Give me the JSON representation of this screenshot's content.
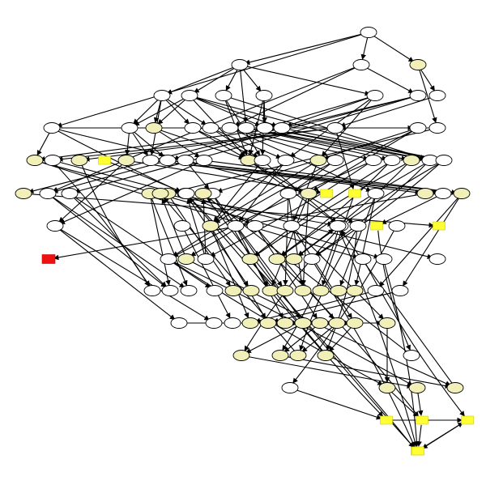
{
  "colors": {
    "background": "#ffffff",
    "edge": "#000000",
    "node_default_fill": "#ffffff",
    "node_highlight_fill": "#f0f0b8",
    "node_box_fill": "#ffff33",
    "node_root_fill": "#ee1111"
  },
  "nodes": [
    {
      "id": "n1",
      "shape": "ellipse",
      "style": "default"
    },
    {
      "id": "n2",
      "shape": "ellipse",
      "style": "default"
    },
    {
      "id": "n3",
      "shape": "ellipse",
      "style": "default"
    },
    {
      "id": "n4",
      "shape": "ellipse",
      "style": "highlight"
    },
    {
      "id": "n5",
      "shape": "ellipse",
      "style": "default"
    },
    {
      "id": "n6",
      "shape": "ellipse",
      "style": "default"
    },
    {
      "id": "n7",
      "shape": "ellipse",
      "style": "default"
    },
    {
      "id": "n8",
      "shape": "ellipse",
      "style": "default"
    },
    {
      "id": "n9",
      "shape": "ellipse",
      "style": "default"
    },
    {
      "id": "n10",
      "shape": "ellipse",
      "style": "default"
    },
    {
      "id": "n11",
      "shape": "ellipse",
      "style": "default"
    },
    {
      "id": "n12",
      "shape": "ellipse",
      "style": "default"
    },
    {
      "id": "n13",
      "shape": "ellipse",
      "style": "default"
    },
    {
      "id": "n14",
      "shape": "ellipse",
      "style": "highlight"
    },
    {
      "id": "n15",
      "shape": "ellipse",
      "style": "default"
    },
    {
      "id": "n16",
      "shape": "ellipse",
      "style": "default"
    },
    {
      "id": "n17",
      "shape": "ellipse",
      "style": "default"
    },
    {
      "id": "n18",
      "shape": "ellipse",
      "style": "default"
    },
    {
      "id": "n19",
      "shape": "ellipse",
      "style": "default"
    },
    {
      "id": "n20",
      "shape": "ellipse",
      "style": "default"
    },
    {
      "id": "n21",
      "shape": "ellipse",
      "style": "default"
    },
    {
      "id": "n22",
      "shape": "ellipse",
      "style": "default"
    },
    {
      "id": "n23",
      "shape": "box",
      "style": "box"
    },
    {
      "id": "n24",
      "shape": "ellipse",
      "style": "default"
    },
    {
      "id": "n25",
      "shape": "ellipse",
      "style": "highlight"
    },
    {
      "id": "n26",
      "shape": "ellipse",
      "style": "default"
    },
    {
      "id": "n27",
      "shape": "ellipse",
      "style": "default"
    },
    {
      "id": "n28",
      "shape": "ellipse",
      "style": "default"
    },
    {
      "id": "n29",
      "shape": "ellipse",
      "style": "default"
    },
    {
      "id": "n30",
      "shape": "ellipse",
      "style": "highlight"
    },
    {
      "id": "n31",
      "shape": "ellipse",
      "style": "default"
    },
    {
      "id": "n32",
      "shape": "ellipse",
      "style": "default"
    },
    {
      "id": "n33",
      "shape": "ellipse",
      "style": "highlight"
    },
    {
      "id": "n34",
      "shape": "ellipse",
      "style": "default"
    },
    {
      "id": "n35",
      "shape": "ellipse",
      "style": "default"
    },
    {
      "id": "n36",
      "shape": "ellipse",
      "style": "default"
    },
    {
      "id": "n37",
      "shape": "ellipse",
      "style": "highlight"
    },
    {
      "id": "n38",
      "shape": "ellipse",
      "style": "default"
    },
    {
      "id": "n39",
      "shape": "ellipse",
      "style": "default"
    },
    {
      "id": "n40",
      "shape": "ellipse",
      "style": "highlight"
    },
    {
      "id": "n41",
      "shape": "ellipse",
      "style": "default"
    },
    {
      "id": "n42",
      "shape": "ellipse",
      "style": "highlight"
    },
    {
      "id": "n43",
      "shape": "ellipse",
      "style": "highlight"
    },
    {
      "id": "n44",
      "shape": "ellipse",
      "style": "default"
    },
    {
      "id": "n45",
      "shape": "ellipse",
      "style": "default"
    },
    {
      "id": "n46",
      "shape": "ellipse",
      "style": "highlight"
    },
    {
      "id": "n47",
      "shape": "ellipse",
      "style": "highlight"
    },
    {
      "id": "n48",
      "shape": "ellipse",
      "style": "default"
    },
    {
      "id": "n49",
      "shape": "ellipse",
      "style": "default"
    },
    {
      "id": "n50",
      "shape": "ellipse",
      "style": "default"
    },
    {
      "id": "n51",
      "shape": "ellipse",
      "style": "highlight"
    },
    {
      "id": "n52",
      "shape": "box",
      "style": "box"
    },
    {
      "id": "n53",
      "shape": "box",
      "style": "box"
    },
    {
      "id": "n54",
      "shape": "ellipse",
      "style": "default"
    },
    {
      "id": "n55",
      "shape": "ellipse",
      "style": "highlight"
    },
    {
      "id": "n56",
      "shape": "ellipse",
      "style": "default"
    },
    {
      "id": "n57",
      "shape": "ellipse",
      "style": "highlight"
    },
    {
      "id": "n58",
      "shape": "ellipse",
      "style": "default"
    },
    {
      "id": "n59",
      "shape": "ellipse",
      "style": "default"
    },
    {
      "id": "n60",
      "shape": "ellipse",
      "style": "highlight"
    },
    {
      "id": "n61",
      "shape": "ellipse",
      "style": "default"
    },
    {
      "id": "n62",
      "shape": "ellipse",
      "style": "default"
    },
    {
      "id": "n63",
      "shape": "ellipse",
      "style": "default"
    },
    {
      "id": "n64",
      "shape": "ellipse",
      "style": "default"
    },
    {
      "id": "n65",
      "shape": "ellipse",
      "style": "default"
    },
    {
      "id": "n66",
      "shape": "box",
      "style": "box"
    },
    {
      "id": "n67",
      "shape": "box",
      "style": "root"
    },
    {
      "id": "n68",
      "shape": "ellipse",
      "style": "default"
    },
    {
      "id": "n69",
      "shape": "ellipse",
      "style": "default"
    },
    {
      "id": "n70",
      "shape": "ellipse",
      "style": "highlight"
    },
    {
      "id": "n71",
      "shape": "ellipse",
      "style": "default"
    },
    {
      "id": "n72",
      "shape": "ellipse",
      "style": "highlight"
    },
    {
      "id": "n73",
      "shape": "ellipse",
      "style": "highlight"
    },
    {
      "id": "n74",
      "shape": "ellipse",
      "style": "highlight"
    },
    {
      "id": "n75",
      "shape": "ellipse",
      "style": "default"
    },
    {
      "id": "n76",
      "shape": "ellipse",
      "style": "default"
    },
    {
      "id": "n77",
      "shape": "ellipse",
      "style": "default"
    },
    {
      "id": "n78",
      "shape": "ellipse",
      "style": "default"
    },
    {
      "id": "n79",
      "shape": "ellipse",
      "style": "default"
    },
    {
      "id": "n80",
      "shape": "box",
      "style": "box"
    },
    {
      "id": "n81",
      "shape": "ellipse",
      "style": "default"
    },
    {
      "id": "n82",
      "shape": "ellipse",
      "style": "default"
    },
    {
      "id": "n83",
      "shape": "ellipse",
      "style": "default"
    },
    {
      "id": "n84",
      "shape": "ellipse",
      "style": "highlight"
    },
    {
      "id": "n85",
      "shape": "ellipse",
      "style": "highlight"
    },
    {
      "id": "n86",
      "shape": "ellipse",
      "style": "highlight"
    },
    {
      "id": "n87",
      "shape": "ellipse",
      "style": "highlight"
    },
    {
      "id": "n88",
      "shape": "ellipse",
      "style": "highlight"
    },
    {
      "id": "n89",
      "shape": "ellipse",
      "style": "highlight"
    },
    {
      "id": "n90",
      "shape": "ellipse",
      "style": "highlight"
    },
    {
      "id": "n91",
      "shape": "ellipse",
      "style": "highlight"
    },
    {
      "id": "n92",
      "shape": "ellipse",
      "style": "default"
    },
    {
      "id": "n93",
      "shape": "ellipse",
      "style": "default"
    },
    {
      "id": "n94",
      "shape": "ellipse",
      "style": "default"
    },
    {
      "id": "n95",
      "shape": "ellipse",
      "style": "default"
    },
    {
      "id": "n96",
      "shape": "ellipse",
      "style": "default"
    },
    {
      "id": "n97",
      "shape": "ellipse",
      "style": "highlight"
    },
    {
      "id": "n98",
      "shape": "ellipse",
      "style": "highlight"
    },
    {
      "id": "n99",
      "shape": "ellipse",
      "style": "highlight"
    },
    {
      "id": "n100",
      "shape": "ellipse",
      "style": "highlight"
    },
    {
      "id": "n101",
      "shape": "ellipse",
      "style": "highlight"
    },
    {
      "id": "n102",
      "shape": "ellipse",
      "style": "highlight"
    },
    {
      "id": "n103",
      "shape": "ellipse",
      "style": "highlight"
    },
    {
      "id": "n104",
      "shape": "ellipse",
      "style": "highlight"
    },
    {
      "id": "n105",
      "shape": "ellipse",
      "style": "highlight"
    },
    {
      "id": "n106",
      "shape": "ellipse",
      "style": "highlight"
    },
    {
      "id": "n107",
      "shape": "ellipse",
      "style": "highlight"
    },
    {
      "id": "n108",
      "shape": "ellipse",
      "style": "highlight"
    },
    {
      "id": "n109",
      "shape": "ellipse",
      "style": "default"
    },
    {
      "id": "n110",
      "shape": "ellipse",
      "style": "default"
    },
    {
      "id": "n111",
      "shape": "ellipse",
      "style": "highlight"
    },
    {
      "id": "n112",
      "shape": "ellipse",
      "style": "highlight"
    },
    {
      "id": "n113",
      "shape": "ellipse",
      "style": "highlight"
    },
    {
      "id": "n114",
      "shape": "ellipse",
      "style": "highlight"
    },
    {
      "id": "n115",
      "shape": "ellipse",
      "style": "default"
    },
    {
      "id": "n116",
      "shape": "ellipse",
      "style": "highlight"
    },
    {
      "id": "n117",
      "shape": "box",
      "style": "box"
    },
    {
      "id": "n118",
      "shape": "box",
      "style": "box"
    },
    {
      "id": "n119",
      "shape": "ellipse",
      "style": "default"
    },
    {
      "id": "n120",
      "shape": "box",
      "style": "box"
    },
    {
      "id": "n121",
      "shape": "box",
      "style": "box"
    },
    {
      "id": "n122",
      "shape": "box",
      "style": "box"
    }
  ],
  "edges": [
    [
      "n1",
      "n2"
    ],
    [
      "n1",
      "n3"
    ],
    [
      "n1",
      "n4"
    ],
    [
      "n1",
      "n17"
    ],
    [
      "n2",
      "n5"
    ],
    [
      "n2",
      "n6"
    ],
    [
      "n2",
      "n7"
    ],
    [
      "n2",
      "n8"
    ],
    [
      "n2",
      "n9"
    ],
    [
      "n2",
      "n19"
    ],
    [
      "n3",
      "n10"
    ],
    [
      "n3",
      "n18"
    ],
    [
      "n3",
      "n44"
    ],
    [
      "n4",
      "n11"
    ],
    [
      "n4",
      "n12"
    ],
    [
      "n5",
      "n13"
    ],
    [
      "n5",
      "n14"
    ],
    [
      "n5",
      "n15"
    ],
    [
      "n5",
      "n16"
    ],
    [
      "n5",
      "n26"
    ],
    [
      "n6",
      "n13"
    ],
    [
      "n6",
      "n14"
    ],
    [
      "n6",
      "n20"
    ],
    [
      "n6",
      "n21"
    ],
    [
      "n6",
      "n30"
    ],
    [
      "n6",
      "n38"
    ],
    [
      "n7",
      "n30"
    ],
    [
      "n7",
      "n31"
    ],
    [
      "n7",
      "n38"
    ],
    [
      "n8",
      "n30"
    ],
    [
      "n8",
      "n31"
    ],
    [
      "n8",
      "n20"
    ],
    [
      "n9",
      "n20"
    ],
    [
      "n9",
      "n21"
    ],
    [
      "n9",
      "n32"
    ],
    [
      "n9",
      "n33"
    ],
    [
      "n10",
      "n44"
    ],
    [
      "n10",
      "n45"
    ],
    [
      "n10",
      "n43"
    ],
    [
      "n11",
      "n22"
    ],
    [
      "n12",
      "n22"
    ],
    [
      "n12",
      "n47"
    ],
    [
      "n13",
      "n25"
    ],
    [
      "n13",
      "n26"
    ],
    [
      "n13",
      "n27"
    ],
    [
      "n14",
      "n29"
    ],
    [
      "n14",
      "n30"
    ],
    [
      "n15",
      "n30"
    ],
    [
      "n15",
      "n31"
    ],
    [
      "n16",
      "n31"
    ],
    [
      "n16",
      "n32"
    ],
    [
      "n17",
      "n24"
    ],
    [
      "n17",
      "n28"
    ],
    [
      "n17",
      "n40"
    ],
    [
      "n17",
      "n62"
    ],
    [
      "n18",
      "n34"
    ],
    [
      "n18",
      "n35"
    ],
    [
      "n18",
      "n54"
    ],
    [
      "n19",
      "n36"
    ],
    [
      "n19",
      "n37"
    ],
    [
      "n19",
      "n38"
    ],
    [
      "n20",
      "n38"
    ],
    [
      "n20",
      "n39"
    ],
    [
      "n21",
      "n39"
    ],
    [
      "n21",
      "n40"
    ],
    [
      "n22",
      "n41"
    ],
    [
      "n22",
      "n42"
    ],
    [
      "n22",
      "n53"
    ],
    [
      "n23",
      "n48"
    ],
    [
      "n24",
      "n49"
    ],
    [
      "n24",
      "n50"
    ],
    [
      "n24",
      "n51"
    ],
    [
      "n25",
      "n52"
    ],
    [
      "n25",
      "n58"
    ],
    [
      "n26",
      "n55"
    ],
    [
      "n26",
      "n56"
    ],
    [
      "n27",
      "n56"
    ],
    [
      "n27",
      "n57"
    ],
    [
      "n28",
      "n49"
    ],
    [
      "n28",
      "n51"
    ],
    [
      "n29",
      "n57"
    ],
    [
      "n29",
      "n58"
    ],
    [
      "n30",
      "n64"
    ],
    [
      "n30",
      "n65"
    ],
    [
      "n31",
      "n60"
    ],
    [
      "n31",
      "n64"
    ],
    [
      "n32",
      "n60"
    ],
    [
      "n32",
      "n61"
    ],
    [
      "n33",
      "n60"
    ],
    [
      "n33",
      "n63"
    ],
    [
      "n34",
      "n69"
    ],
    [
      "n34",
      "n70"
    ],
    [
      "n35",
      "n69"
    ],
    [
      "n35",
      "n71"
    ],
    [
      "n36",
      "n72"
    ],
    [
      "n36",
      "n73"
    ],
    [
      "n37",
      "n72"
    ],
    [
      "n37",
      "n74"
    ],
    [
      "n38",
      "n73"
    ],
    [
      "n38",
      "n75"
    ],
    [
      "n39",
      "n74"
    ],
    [
      "n39",
      "n75"
    ],
    [
      "n40",
      "n76"
    ],
    [
      "n40",
      "n77"
    ],
    [
      "n41",
      "n78"
    ],
    [
      "n41",
      "n79"
    ],
    [
      "n42",
      "n79"
    ],
    [
      "n43",
      "n80"
    ],
    [
      "n44",
      "n81"
    ],
    [
      "n44",
      "n82"
    ],
    [
      "n45",
      "n81"
    ],
    [
      "n45",
      "n83"
    ],
    [
      "n46",
      "n81"
    ],
    [
      "n46",
      "n82"
    ],
    [
      "n47",
      "n84"
    ],
    [
      "n48",
      "n85"
    ],
    [
      "n49",
      "n86"
    ],
    [
      "n49",
      "n87"
    ],
    [
      "n50",
      "n87"
    ],
    [
      "n50",
      "n88"
    ],
    [
      "n51",
      "n86"
    ],
    [
      "n51",
      "n88"
    ],
    [
      "n53",
      "n89"
    ],
    [
      "n54",
      "n90"
    ],
    [
      "n54",
      "n91"
    ],
    [
      "n55",
      "n67"
    ],
    [
      "n56",
      "n66"
    ],
    [
      "n57",
      "n92"
    ],
    [
      "n57",
      "n93"
    ],
    [
      "n58",
      "n94"
    ],
    [
      "n58",
      "n95"
    ],
    [
      "n59",
      "n96"
    ],
    [
      "n60",
      "n97"
    ],
    [
      "n60",
      "n98"
    ],
    [
      "n61",
      "n99"
    ],
    [
      "n61",
      "n100"
    ],
    [
      "n62",
      "n101"
    ],
    [
      "n62",
      "n102"
    ],
    [
      "n63",
      "n103"
    ],
    [
      "n63",
      "n104"
    ],
    [
      "n64",
      "n105"
    ],
    [
      "n64",
      "n106"
    ],
    [
      "n65",
      "n107"
    ],
    [
      "n65",
      "n108"
    ],
    [
      "n66",
      "n109"
    ],
    [
      "n68",
      "n110"
    ],
    [
      "n69",
      "n111"
    ],
    [
      "n69",
      "n112"
    ],
    [
      "n70",
      "n113"
    ],
    [
      "n70",
      "n114"
    ],
    [
      "n71",
      "n115"
    ],
    [
      "n71",
      "n116"
    ],
    [
      "n72",
      "n117"
    ],
    [
      "n73",
      "n118"
    ],
    [
      "n74",
      "n119"
    ],
    [
      "n75",
      "n120"
    ],
    [
      "n76",
      "n121"
    ],
    [
      "n77",
      "n122"
    ],
    [
      "n92",
      "n97"
    ],
    [
      "n93",
      "n98"
    ],
    [
      "n94",
      "n99"
    ],
    [
      "n95",
      "n100"
    ],
    [
      "n96",
      "n101"
    ],
    [
      "n97",
      "n102"
    ],
    [
      "n98",
      "n103"
    ],
    [
      "n99",
      "n104"
    ],
    [
      "n100",
      "n105"
    ],
    [
      "n101",
      "n106"
    ],
    [
      "n102",
      "n107"
    ],
    [
      "n103",
      "n108"
    ],
    [
      "n104",
      "n111"
    ],
    [
      "n105",
      "n112"
    ],
    [
      "n106",
      "n113"
    ],
    [
      "n107",
      "n114"
    ],
    [
      "n108",
      "n115"
    ],
    [
      "n109",
      "n116"
    ],
    [
      "n110",
      "n117"
    ],
    [
      "n111",
      "n118"
    ],
    [
      "n112",
      "n118"
    ],
    [
      "n113",
      "n119"
    ],
    [
      "n114",
      "n119"
    ],
    [
      "n115",
      "n120"
    ],
    [
      "n116",
      "n120"
    ],
    [
      "n117",
      "n121"
    ],
    [
      "n118",
      "n122"
    ],
    [
      "n119",
      "n122"
    ],
    [
      "n120",
      "n121"
    ],
    [
      "n121",
      "n122"
    ]
  ]
}
